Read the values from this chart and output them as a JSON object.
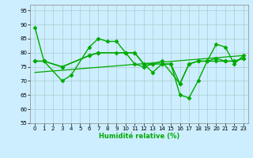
{
  "xlabel": "Humidité relative (%)",
  "bg_color": "#cceeff",
  "grid_color": "#aacccc",
  "line_color": "#00aa00",
  "xlim": [
    -0.5,
    23.5
  ],
  "ylim": [
    55,
    97
  ],
  "yticks": [
    55,
    60,
    65,
    70,
    75,
    80,
    85,
    90,
    95
  ],
  "xticks": [
    0,
    1,
    2,
    3,
    4,
    5,
    6,
    7,
    8,
    9,
    10,
    11,
    12,
    13,
    14,
    15,
    16,
    17,
    18,
    19,
    20,
    21,
    22,
    23
  ],
  "series": [
    {
      "x": [
        0,
        1,
        3,
        4,
        6,
        7,
        8,
        9,
        10,
        11,
        12,
        13,
        14,
        15,
        16,
        17,
        18,
        19,
        20,
        21,
        22,
        23
      ],
      "y": [
        89,
        77,
        70,
        72,
        82,
        85,
        84,
        84,
        80,
        80,
        76,
        73,
        76,
        76,
        65,
        64,
        70,
        77,
        83,
        82,
        76,
        79
      ],
      "marker": "D",
      "markersize": 2.5,
      "linewidth": 1.0
    },
    {
      "x": [
        0,
        1,
        3,
        6,
        7,
        10,
        11,
        12,
        13,
        14,
        16,
        17,
        18,
        19,
        20,
        21,
        22,
        23
      ],
      "y": [
        77,
        77,
        75,
        79,
        80,
        80,
        80,
        76,
        76,
        77,
        69,
        76,
        77,
        77,
        78,
        77,
        77,
        78
      ],
      "marker": "D",
      "markersize": 2.5,
      "linewidth": 1.0
    },
    {
      "x": [
        0,
        1,
        3,
        6,
        7,
        9,
        10,
        11,
        12,
        13,
        14,
        15,
        16,
        17,
        18,
        19,
        20,
        21,
        22,
        23
      ],
      "y": [
        77,
        77,
        75,
        79,
        80,
        80,
        80,
        76,
        75,
        76,
        76,
        76,
        69,
        76,
        77,
        77,
        77,
        77,
        77,
        78
      ],
      "marker": "D",
      "markersize": 2.5,
      "linewidth": 1.0
    },
    {
      "x": [
        0,
        23
      ],
      "y": [
        73,
        79
      ],
      "marker": null,
      "markersize": 0,
      "linewidth": 0.9
    }
  ]
}
